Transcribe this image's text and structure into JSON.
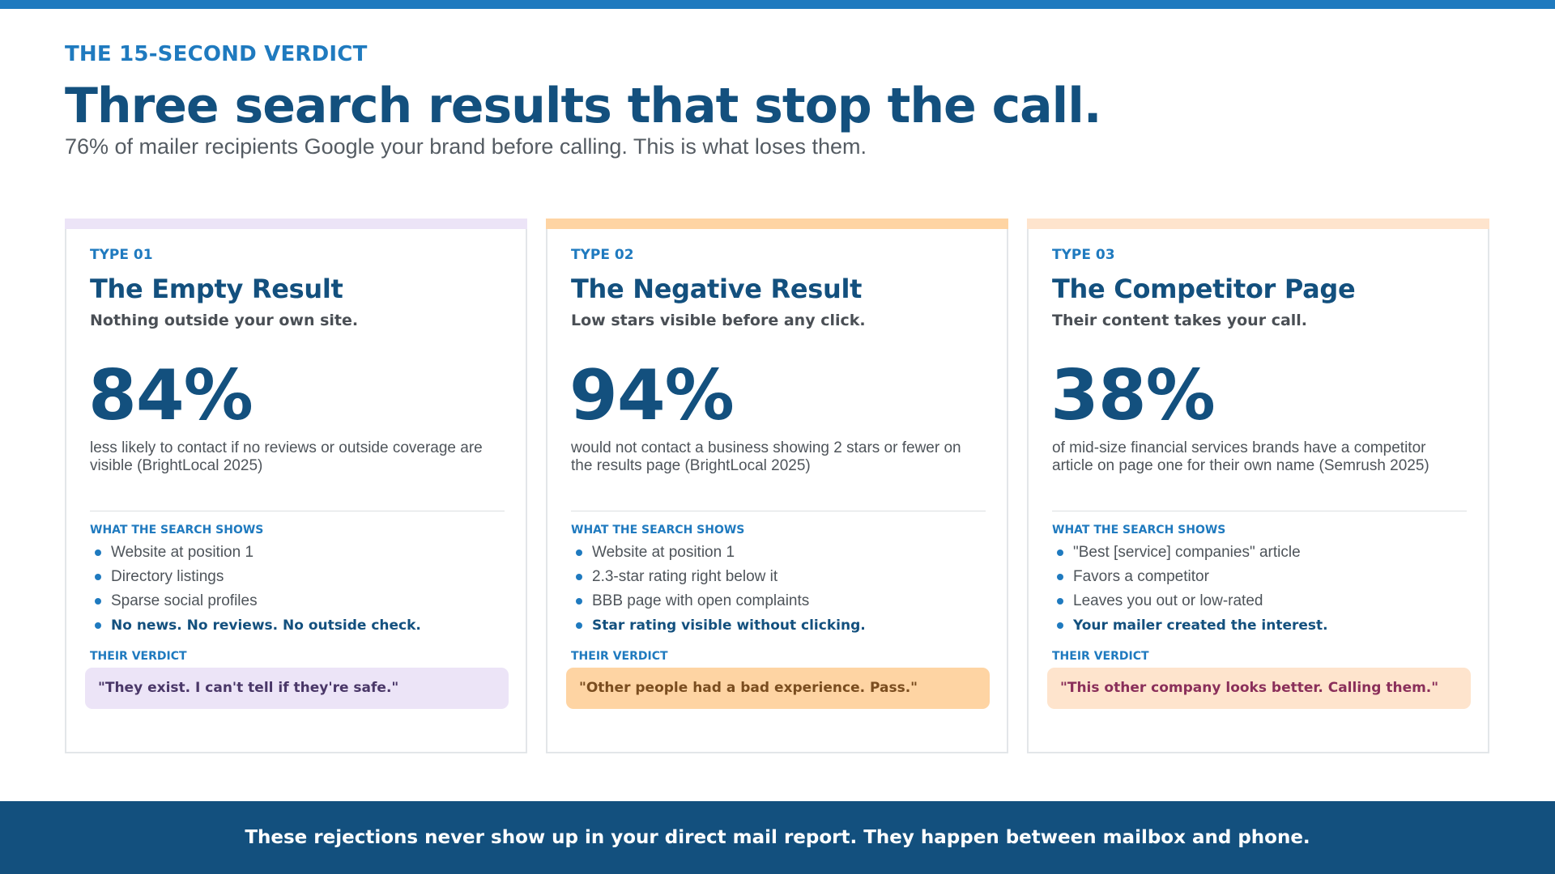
{
  "colors": {
    "top_bar": "#1f7abf",
    "primary_navy": "#13507e",
    "accent_blue": "#1f7abf",
    "footer_bg": "#13507e"
  },
  "header": {
    "eyebrow": "THE 15-SECOND VERDICT",
    "title": "Three search results that stop the call.",
    "subtitle": "76% of mailer recipients Google your brand before calling. This is what loses them."
  },
  "cards": [
    {
      "type_label": "TYPE 01",
      "title": "The Empty Result",
      "subtitle": "Nothing outside your own site.",
      "stat": "84%",
      "stat_desc": "less likely to contact if no reviews or outside coverage are visible (BrightLocal 2025)",
      "shows_label": "WHAT THE SEARCH SHOWS",
      "bullets": [
        "Website at position 1",
        "Directory listings",
        "Sparse social profiles",
        "No news. No reviews. No outside check."
      ],
      "verdict_label": "THEIR VERDICT",
      "verdict": "\"They exist. I can't tell if they're safe.\"",
      "accent_color": "#ece4f7",
      "verdict_bg": "#ece4f7",
      "verdict_color": "#4a3768"
    },
    {
      "type_label": "TYPE 02",
      "title": "The Negative Result",
      "subtitle": "Low stars visible before any click.",
      "stat": "94%",
      "stat_desc": "would not contact a business showing 2 stars or fewer on the results page (BrightLocal 2025)",
      "shows_label": "WHAT THE SEARCH SHOWS",
      "bullets": [
        "Website at position 1",
        "2.3-star rating right below it",
        "BBB page with open complaints",
        "Star rating visible without clicking."
      ],
      "verdict_label": "THEIR VERDICT",
      "verdict": "\"Other people had a bad experience. Pass.\"",
      "accent_color": "#fed4a3",
      "verdict_bg": "#fed4a3",
      "verdict_color": "#7a4d1f"
    },
    {
      "type_label": "TYPE 03",
      "title": "The Competitor Page",
      "subtitle": "Their content takes your call.",
      "stat": "38%",
      "stat_desc": "of mid-size financial services brands have a competitor article on page one for their own name (Semrush 2025)",
      "shows_label": "WHAT THE SEARCH SHOWS",
      "bullets": [
        "\"Best [service] companies\" article",
        "Favors a competitor",
        "Leaves you out or low-rated",
        "Your mailer created the interest."
      ],
      "verdict_label": "THEIR VERDICT",
      "verdict": "\"This other company looks better. Calling them.\"",
      "accent_color": "#fee4cd",
      "verdict_bg": "#fee4cd",
      "verdict_color": "#8a2f5a"
    }
  ],
  "footer": {
    "text": "These rejections never show up in your direct mail report. They happen between mailbox and phone."
  }
}
